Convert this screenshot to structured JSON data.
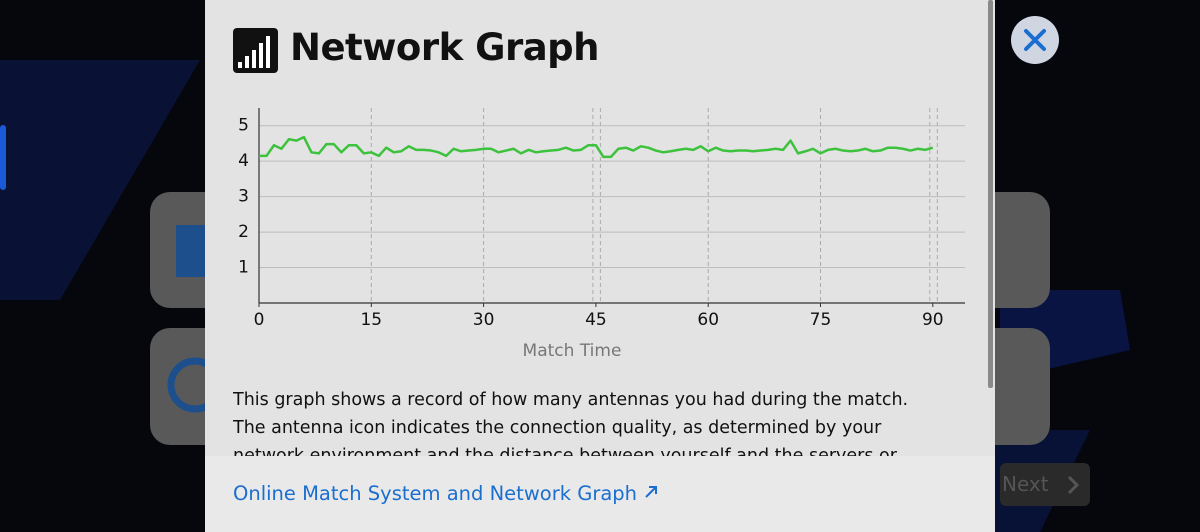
{
  "header": {
    "title": "Network Graph"
  },
  "chart_data": {
    "type": "line",
    "xlabel": "Match Time",
    "x": [
      0,
      1,
      2,
      3,
      4,
      5,
      6,
      7,
      8,
      9,
      10,
      11,
      12,
      13,
      14,
      15,
      16,
      17,
      18,
      19,
      20,
      21,
      22,
      23,
      24,
      25,
      26,
      27,
      28,
      29,
      30,
      31,
      32,
      33,
      34,
      35,
      36,
      37,
      38,
      39,
      40,
      41,
      42,
      43,
      44,
      45,
      46,
      47,
      48,
      49,
      50,
      51,
      52,
      53,
      54,
      55,
      56,
      57,
      58,
      59,
      60,
      61,
      62,
      63,
      64,
      65,
      66,
      67,
      68,
      69,
      70,
      71,
      72,
      73,
      74,
      75,
      76,
      77,
      78,
      79,
      80,
      81,
      82,
      83,
      84,
      85,
      86,
      87,
      88,
      89,
      90
    ],
    "series": [
      {
        "color": "#3cc23c",
        "values": [
          4.15,
          4.15,
          4.45,
          4.35,
          4.62,
          4.58,
          4.68,
          4.25,
          4.22,
          4.48,
          4.48,
          4.25,
          4.45,
          4.45,
          4.22,
          4.25,
          4.15,
          4.38,
          4.25,
          4.28,
          4.42,
          4.32,
          4.32,
          4.3,
          4.25,
          4.15,
          4.35,
          4.28,
          4.3,
          4.32,
          4.35,
          4.35,
          4.25,
          4.3,
          4.35,
          4.22,
          4.32,
          4.25,
          4.28,
          4.3,
          4.32,
          4.38,
          4.3,
          4.32,
          4.45,
          4.45,
          4.12,
          4.12,
          4.35,
          4.38,
          4.3,
          4.42,
          4.38,
          4.3,
          4.25,
          4.28,
          4.32,
          4.35,
          4.32,
          4.42,
          4.28,
          4.38,
          4.3,
          4.28,
          4.3,
          4.3,
          4.28,
          4.3,
          4.32,
          4.35,
          4.32,
          4.58,
          4.22,
          4.28,
          4.35,
          4.22,
          4.32,
          4.35,
          4.3,
          4.28,
          4.3,
          4.35,
          4.28,
          4.3,
          4.38,
          4.38,
          4.35,
          4.3,
          4.35,
          4.32,
          4.38
        ]
      }
    ],
    "xlim": [
      0,
      94.3
    ],
    "xticks": [
      0,
      15,
      30,
      45,
      60,
      75,
      90
    ],
    "ylim": [
      0,
      5.5
    ],
    "yticks": [
      1,
      2,
      3,
      4,
      5
    ],
    "vlines": [
      15,
      30,
      44.6,
      45.6,
      60,
      75,
      89.6,
      90.6
    ],
    "grid": true
  },
  "description": "This graph shows a record of how many antennas you had during the match. The antenna icon indicates the connection quality, as determined by your network environment and the distance between yourself and the servers or your opponent.",
  "link": "Online Match System and Network Graph",
  "background": {
    "next": "Next"
  }
}
